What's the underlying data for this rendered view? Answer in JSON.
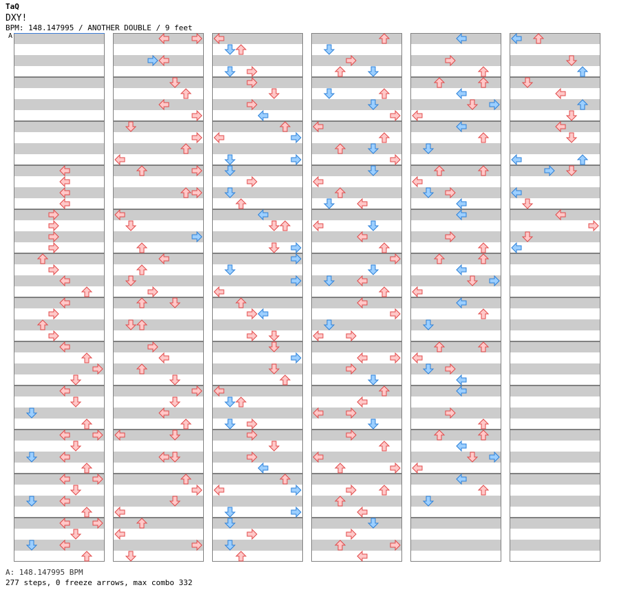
{
  "header": {
    "artist": "TaQ",
    "title": "DXY!",
    "bpm_line": "BPM: 148.147995 / ANOTHER DOUBLE / 9 feet"
  },
  "marker": "A",
  "footer": {
    "bpm_note": "A: 148.147995 BPM",
    "stats": "277 steps, 0 freeze arrows, max combo 332"
  },
  "colors": {
    "red_fill": "#ffc8c8",
    "red_stroke": "#e04848",
    "blue_fill": "#9ccfff",
    "blue_stroke": "#2a7fd8",
    "stripe": "#cccccc",
    "frame": "#808080"
  },
  "chart": {
    "type": "step-chart",
    "columns": 6,
    "measures_per_column": 12,
    "lanes": 8,
    "arrows": [
      [
        [
          [
            0,
            0
          ]
        ]
      ],
      []
    ]
  }
}
